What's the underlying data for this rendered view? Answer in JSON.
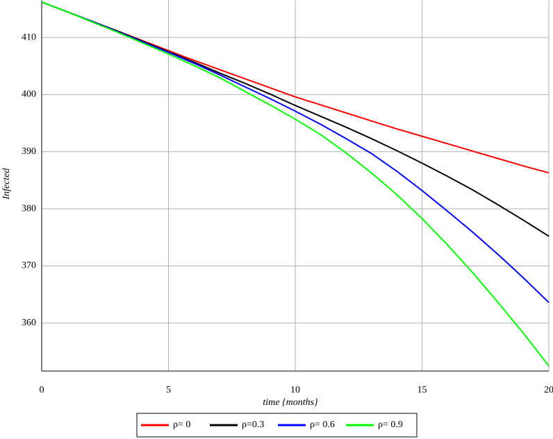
{
  "chart_data": {
    "type": "line",
    "x_label": "time {months}",
    "y_label": "Infected",
    "x": [
      0,
      1,
      2,
      3,
      4,
      5,
      6,
      7,
      8,
      9,
      10,
      11,
      12,
      13,
      14,
      15,
      16,
      17,
      18,
      19,
      20
    ],
    "series": [
      {
        "name": "ρ= 0",
        "color": "#ff0000",
        "values": [
          416.2,
          414.5,
          412.8,
          411.1,
          409.4,
          407.7,
          406.0,
          404.4,
          402.8,
          401.2,
          399.6,
          398.2,
          396.8,
          395.4,
          394.0,
          392.7,
          391.4,
          390.1,
          388.8,
          387.5,
          386.3
        ]
      },
      {
        "name": "ρ=0.3",
        "color": "#000000",
        "values": [
          416.2,
          414.5,
          412.8,
          411.1,
          409.3,
          407.5,
          405.7,
          403.8,
          402.0,
          400.1,
          398.1,
          396.2,
          394.3,
          392.3,
          390.2,
          388.0,
          385.7,
          383.3,
          380.7,
          378.0,
          375.2
        ]
      },
      {
        "name": "ρ= 0.6",
        "color": "#0000ff",
        "values": [
          416.2,
          414.5,
          412.8,
          411.0,
          409.2,
          407.4,
          405.5,
          403.5,
          401.4,
          399.3,
          397.1,
          394.8,
          392.3,
          389.7,
          386.6,
          383.2,
          379.6,
          375.9,
          372.0,
          367.9,
          363.6
        ]
      },
      {
        "name": "ρ= 0.9",
        "color": "#00ff00",
        "values": [
          416.2,
          414.5,
          412.7,
          410.9,
          409.0,
          407.1,
          405.1,
          403.0,
          400.6,
          398.2,
          395.7,
          393.0,
          389.8,
          386.3,
          382.5,
          378.3,
          373.7,
          368.8,
          363.6,
          358.2,
          352.5
        ]
      }
    ],
    "xlim": [
      0,
      20
    ],
    "xticks": [
      0,
      5,
      10,
      15,
      20
    ],
    "ylim": [
      351.6,
      416.5
    ],
    "yticks": [
      360,
      370,
      380,
      390,
      400,
      410
    ],
    "grid": true,
    "legend": "bottom"
  }
}
